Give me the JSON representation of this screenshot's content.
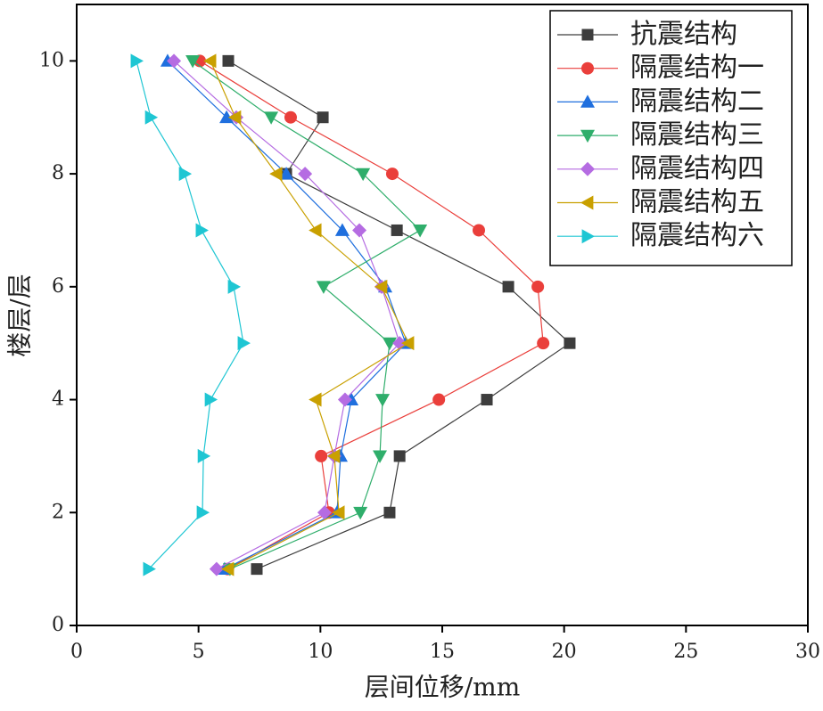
{
  "chart_data": {
    "type": "line",
    "xlabel": "层间位移/mm",
    "ylabel": "楼层/层",
    "y": [
      1,
      2,
      3,
      4,
      5,
      6,
      7,
      8,
      9,
      10
    ],
    "series": [
      {
        "name": "抗震结构",
        "color": "#3d3d3d",
        "marker": "square",
        "x": [
          7.39,
          12.84,
          13.25,
          16.83,
          20.23,
          17.71,
          13.14,
          8.6,
          10.1,
          6.22
        ]
      },
      {
        "name": "隔震结构一",
        "color": "#ea3f3b",
        "marker": "circle",
        "x": [
          6.2,
          10.35,
          10.03,
          14.86,
          19.14,
          18.92,
          16.5,
          12.95,
          8.78,
          5.05
        ]
      },
      {
        "name": "隔震结构二",
        "color": "#1f6fde",
        "marker": "triangle-up",
        "x": [
          6.07,
          10.68,
          10.83,
          11.27,
          13.5,
          12.66,
          10.9,
          8.6,
          6.15,
          3.73
        ]
      },
      {
        "name": "隔震结构三",
        "color": "#2fae6b",
        "marker": "triangle-down",
        "x": [
          6.29,
          11.64,
          12.44,
          12.55,
          12.84,
          10.13,
          14.09,
          11.75,
          7.98,
          4.76
        ]
      },
      {
        "name": "隔震结构四",
        "color": "#b56ce2",
        "marker": "diamond",
        "x": [
          5.74,
          10.17,
          10.57,
          11.01,
          13.25,
          12.51,
          11.6,
          9.37,
          6.55,
          3.99
        ]
      },
      {
        "name": "隔震结构五",
        "color": "#c9a000",
        "marker": "triangle-left",
        "x": [
          6.22,
          10.76,
          10.57,
          9.81,
          13.61,
          12.51,
          9.81,
          8.2,
          6.51,
          5.49
        ]
      },
      {
        "name": "隔震结构六",
        "color": "#1fc6d3",
        "marker": "triangle-right",
        "x": [
          2.96,
          5.16,
          5.2,
          5.49,
          6.84,
          6.44,
          5.12,
          4.43,
          3.04,
          2.45
        ]
      }
    ],
    "xlim": [
      0,
      30
    ],
    "xticks": [
      0,
      5,
      10,
      15,
      20,
      25,
      30
    ],
    "ylim": [
      0,
      11
    ],
    "yticks": [
      0,
      2,
      4,
      6,
      8,
      10
    ],
    "legend": "upper right"
  }
}
